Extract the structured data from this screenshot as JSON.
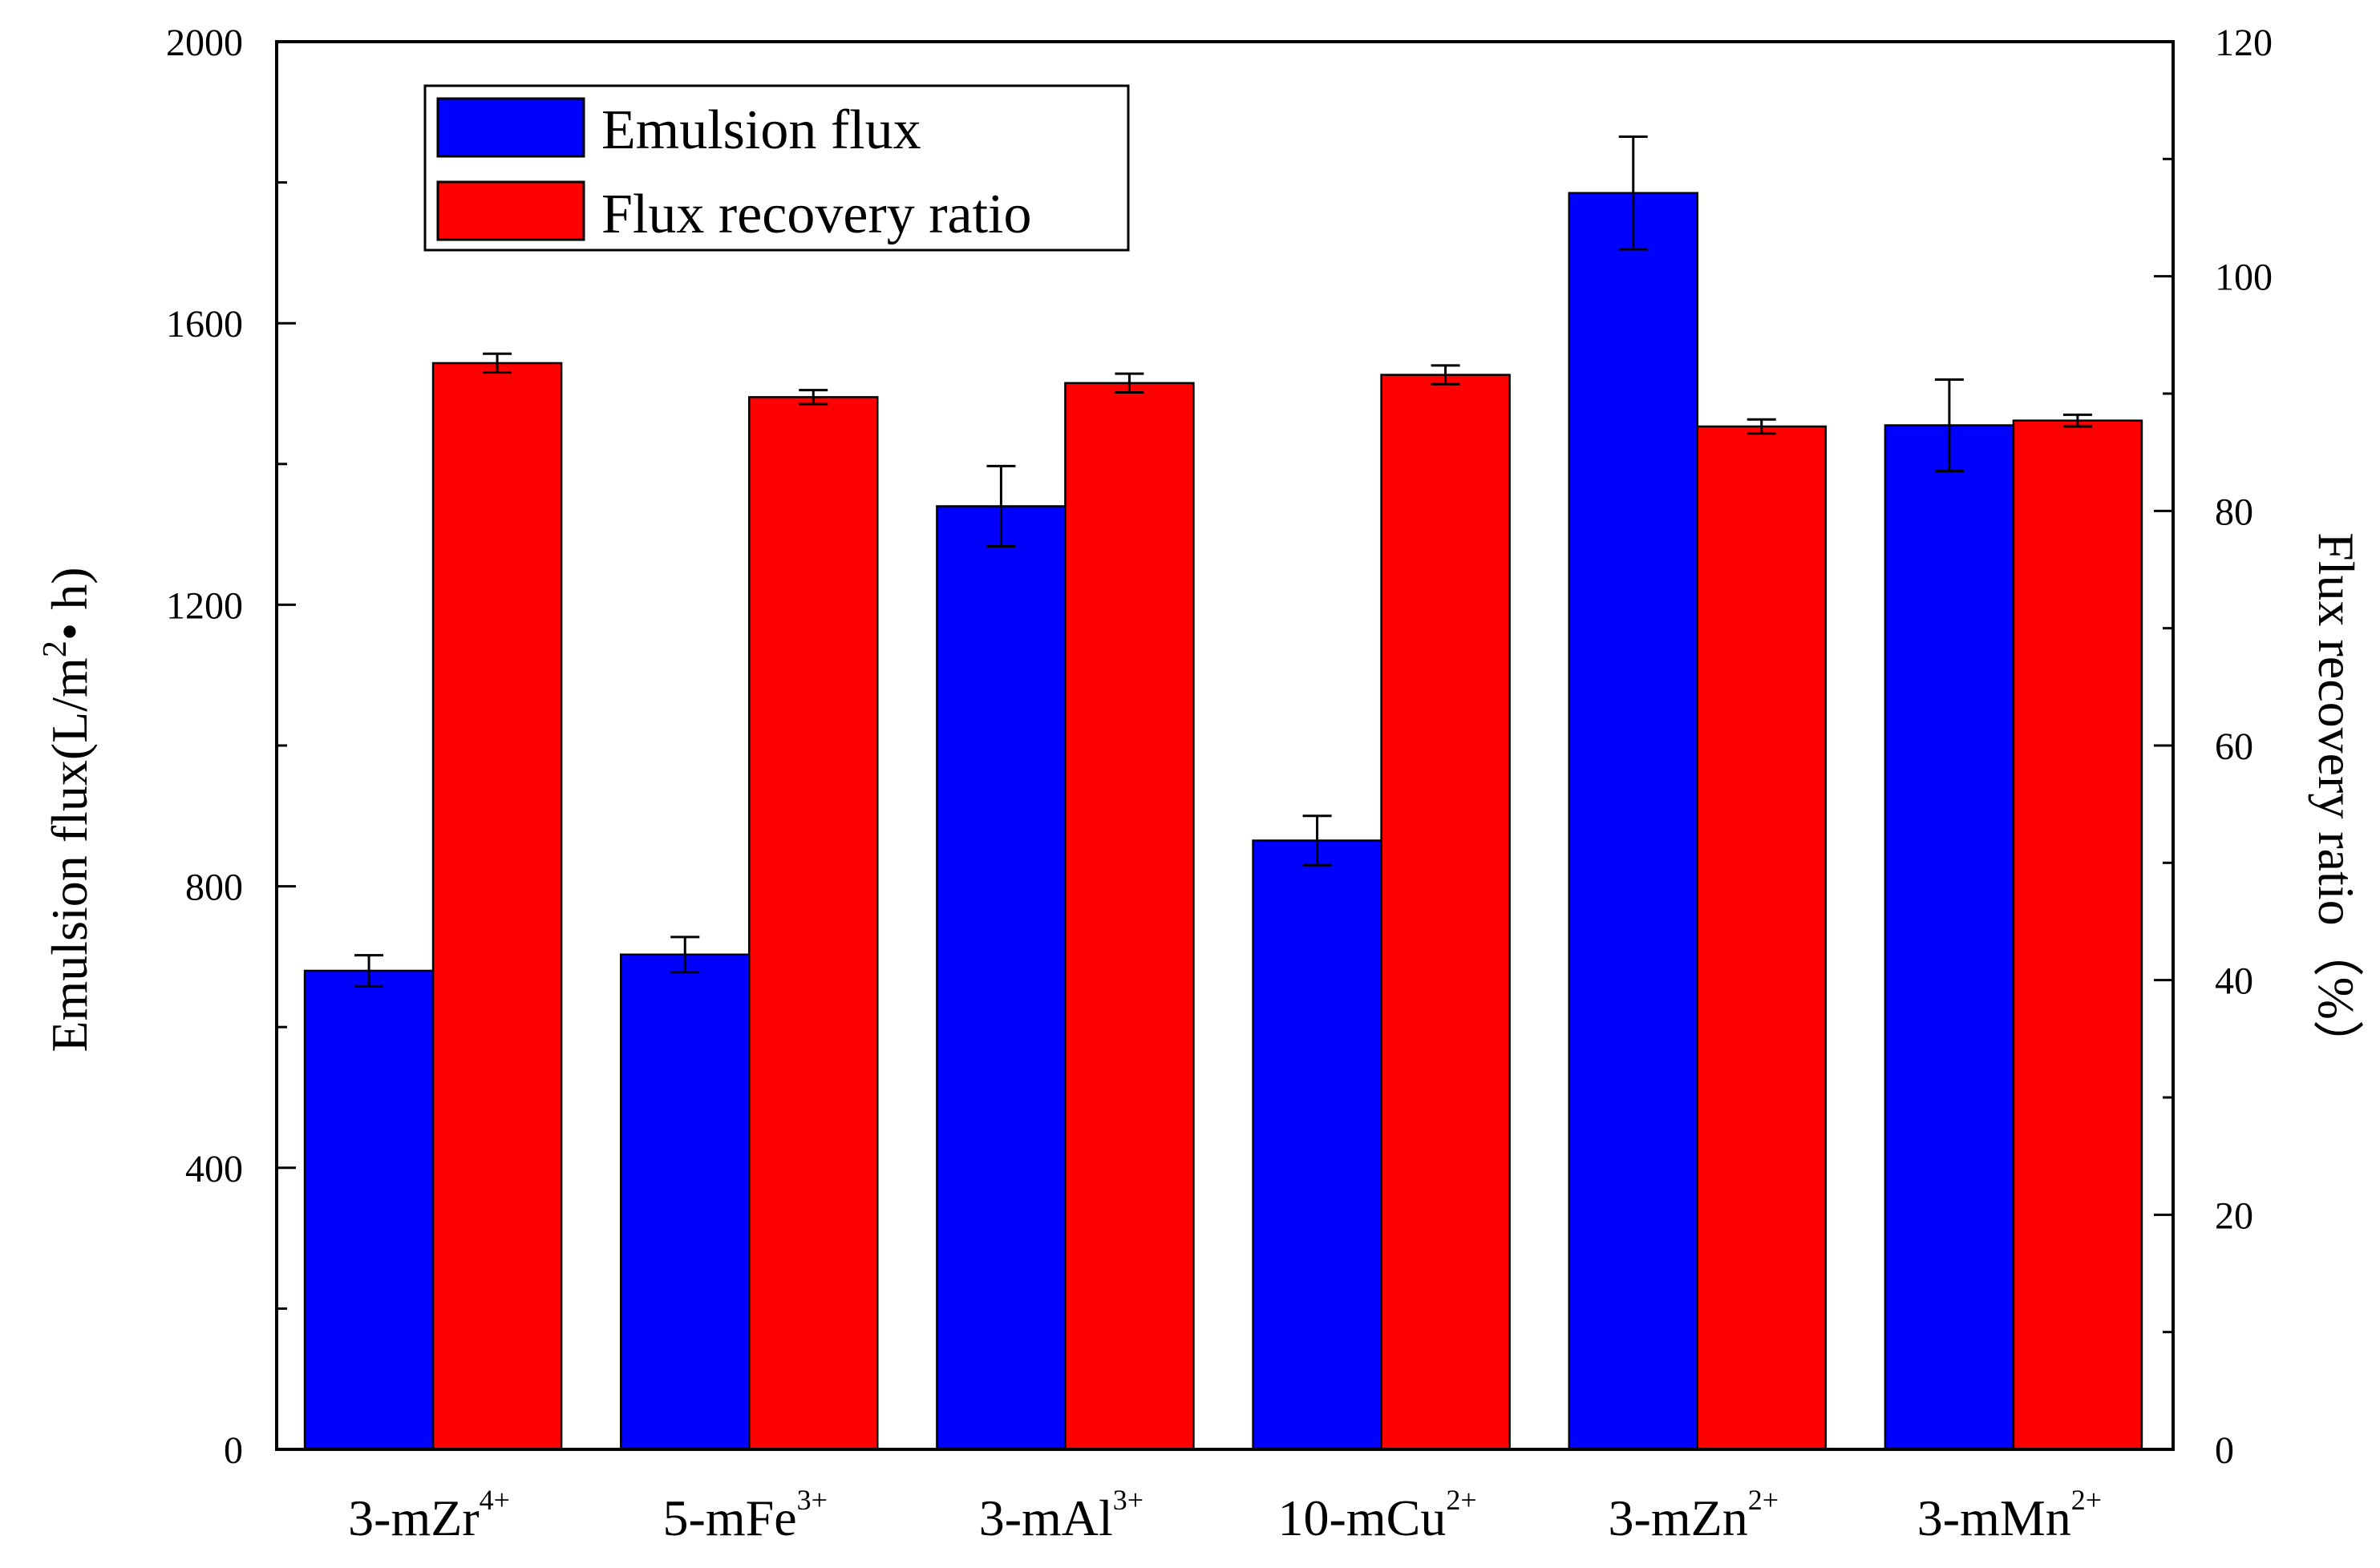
{
  "chart_data": {
    "type": "bar",
    "categories": [
      {
        "base": "3-mZr",
        "sup": "4+"
      },
      {
        "base": "5-mFe",
        "sup": "3+"
      },
      {
        "base": "3-mAl",
        "sup": "3+"
      },
      {
        "base": "10-mCu",
        "sup": "2+"
      },
      {
        "base": "3-mZn",
        "sup": "2+"
      },
      {
        "base": "3-mMn",
        "sup": "2+"
      }
    ],
    "series": [
      {
        "name": "Emulsion flux",
        "axis": "left",
        "color": "#0000ff",
        "values": [
          680,
          703,
          1340,
          865,
          1785,
          1455
        ],
        "errors": [
          22,
          25,
          57,
          35,
          80,
          65
        ]
      },
      {
        "name": "Flux recovery ratio",
        "axis": "right",
        "color": "#ff0000",
        "values": [
          92.6,
          89.7,
          90.9,
          91.6,
          87.2,
          87.7
        ],
        "errors": [
          0.8,
          0.6,
          0.8,
          0.8,
          0.6,
          0.5
        ]
      }
    ],
    "y_left": {
      "label": "Emulsion flux(L/m",
      "label_sup": "2",
      "label_end": "• h)",
      "min": 0,
      "max": 2000,
      "ticks": [
        "0",
        "400",
        "800",
        "1200",
        "1600",
        "2000"
      ],
      "tick_values": [
        0,
        400,
        800,
        1200,
        1600,
        2000
      ]
    },
    "y_right": {
      "label": "Flux recovery ratio（%）",
      "min": 0,
      "max": 120,
      "ticks": [
        "0",
        "20",
        "40",
        "60",
        "80",
        "100",
        "120"
      ],
      "tick_values": [
        0,
        20,
        40,
        60,
        80,
        100,
        120
      ]
    },
    "legend": [
      "Emulsion flux",
      "Flux recovery ratio"
    ],
    "legend_position": "top-left",
    "grid": false
  }
}
